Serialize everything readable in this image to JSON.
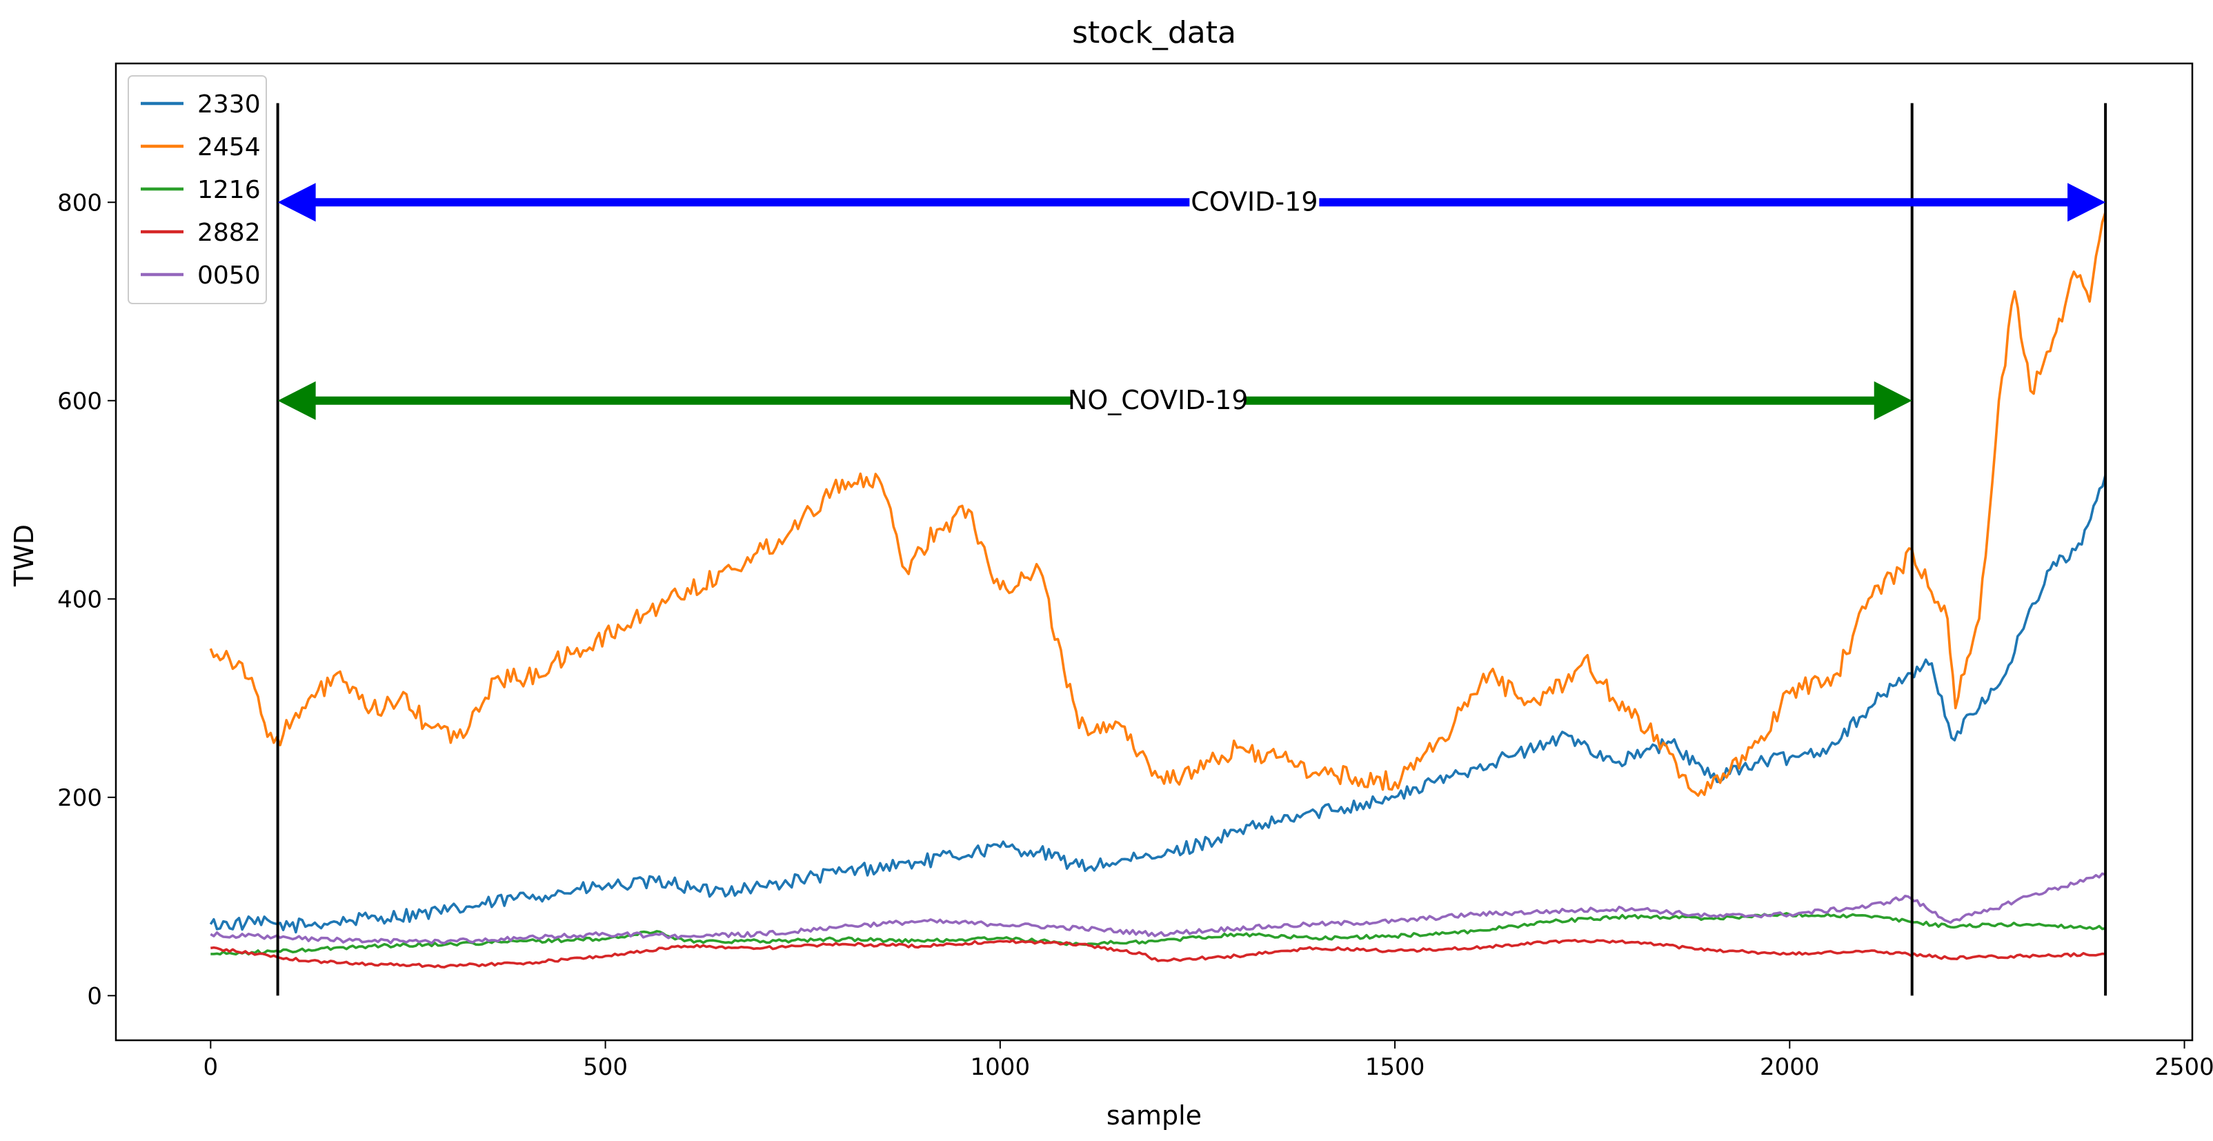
{
  "chart_data": {
    "type": "line",
    "title": "stock_data",
    "xlabel": "sample",
    "ylabel": "TWD",
    "xlim": [
      -120,
      2510
    ],
    "ylim": [
      -45,
      940
    ],
    "xticks": [
      0,
      500,
      1000,
      1500,
      2000,
      2500
    ],
    "yticks": [
      0,
      200,
      400,
      600,
      800
    ],
    "grid": false,
    "legend_position": "top-left",
    "series": [
      {
        "name": "2330",
        "color": "#1f77b4",
        "points": [
          [
            0,
            72
          ],
          [
            80,
            73
          ],
          [
            100,
            70
          ],
          [
            200,
            78
          ],
          [
            300,
            85
          ],
          [
            400,
            100
          ],
          [
            500,
            110
          ],
          [
            580,
            115
          ],
          [
            620,
            105
          ],
          [
            700,
            110
          ],
          [
            800,
            125
          ],
          [
            900,
            135
          ],
          [
            1000,
            150
          ],
          [
            1050,
            145
          ],
          [
            1100,
            130
          ],
          [
            1150,
            135
          ],
          [
            1200,
            140
          ],
          [
            1300,
            165
          ],
          [
            1400,
            185
          ],
          [
            1500,
            200
          ],
          [
            1550,
            215
          ],
          [
            1600,
            230
          ],
          [
            1680,
            250
          ],
          [
            1720,
            262
          ],
          [
            1780,
            235
          ],
          [
            1850,
            255
          ],
          [
            1900,
            220
          ],
          [
            1960,
            235
          ],
          [
            2000,
            240
          ],
          [
            2050,
            250
          ],
          [
            2100,
            290
          ],
          [
            2150,
            325
          ],
          [
            2180,
            335
          ],
          [
            2205,
            260
          ],
          [
            2240,
            290
          ],
          [
            2270,
            320
          ],
          [
            2300,
            380
          ],
          [
            2330,
            430
          ],
          [
            2370,
            455
          ],
          [
            2400,
            525
          ]
        ]
      },
      {
        "name": "2454",
        "color": "#ff7f0e",
        "points": [
          [
            0,
            350
          ],
          [
            40,
            335
          ],
          [
            80,
            255
          ],
          [
            120,
            290
          ],
          [
            160,
            325
          ],
          [
            200,
            285
          ],
          [
            240,
            300
          ],
          [
            280,
            270
          ],
          [
            320,
            260
          ],
          [
            360,
            320
          ],
          [
            400,
            320
          ],
          [
            460,
            345
          ],
          [
            520,
            370
          ],
          [
            580,
            400
          ],
          [
            660,
            430
          ],
          [
            720,
            460
          ],
          [
            760,
            490
          ],
          [
            800,
            520
          ],
          [
            850,
            515
          ],
          [
            880,
            430
          ],
          [
            920,
            470
          ],
          [
            960,
            490
          ],
          [
            1000,
            410
          ],
          [
            1050,
            430
          ],
          [
            1100,
            270
          ],
          [
            1150,
            275
          ],
          [
            1200,
            220
          ],
          [
            1250,
            225
          ],
          [
            1300,
            250
          ],
          [
            1350,
            240
          ],
          [
            1400,
            225
          ],
          [
            1450,
            220
          ],
          [
            1500,
            215
          ],
          [
            1560,
            260
          ],
          [
            1620,
            325
          ],
          [
            1660,
            300
          ],
          [
            1700,
            305
          ],
          [
            1740,
            340
          ],
          [
            1780,
            295
          ],
          [
            1840,
            255
          ],
          [
            1880,
            205
          ],
          [
            1920,
            220
          ],
          [
            1960,
            255
          ],
          [
            2000,
            305
          ],
          [
            2060,
            325
          ],
          [
            2100,
            400
          ],
          [
            2140,
            430
          ],
          [
            2155,
            450
          ],
          [
            2200,
            380
          ],
          [
            2210,
            290
          ],
          [
            2240,
            380
          ],
          [
            2265,
            600
          ],
          [
            2285,
            710
          ],
          [
            2305,
            610
          ],
          [
            2330,
            650
          ],
          [
            2360,
            730
          ],
          [
            2380,
            700
          ],
          [
            2400,
            790
          ]
        ]
      },
      {
        "name": "1216",
        "color": "#2ca02c",
        "points": [
          [
            0,
            42
          ],
          [
            100,
            45
          ],
          [
            200,
            50
          ],
          [
            300,
            52
          ],
          [
            400,
            55
          ],
          [
            500,
            57
          ],
          [
            565,
            65
          ],
          [
            600,
            55
          ],
          [
            700,
            55
          ],
          [
            800,
            57
          ],
          [
            900,
            55
          ],
          [
            1000,
            58
          ],
          [
            1100,
            52
          ],
          [
            1200,
            55
          ],
          [
            1300,
            62
          ],
          [
            1400,
            58
          ],
          [
            1500,
            60
          ],
          [
            1600,
            65
          ],
          [
            1700,
            75
          ],
          [
            1800,
            80
          ],
          [
            1900,
            78
          ],
          [
            2000,
            82
          ],
          [
            2100,
            80
          ],
          [
            2150,
            75
          ],
          [
            2200,
            70
          ],
          [
            2300,
            72
          ],
          [
            2400,
            68
          ]
        ]
      },
      {
        "name": "2882",
        "color": "#d62728",
        "points": [
          [
            0,
            48
          ],
          [
            60,
            42
          ],
          [
            120,
            35
          ],
          [
            200,
            32
          ],
          [
            300,
            30
          ],
          [
            400,
            33
          ],
          [
            500,
            40
          ],
          [
            600,
            50
          ],
          [
            700,
            48
          ],
          [
            800,
            52
          ],
          [
            900,
            50
          ],
          [
            1000,
            55
          ],
          [
            1100,
            52
          ],
          [
            1180,
            42
          ],
          [
            1200,
            35
          ],
          [
            1300,
            40
          ],
          [
            1400,
            48
          ],
          [
            1500,
            45
          ],
          [
            1600,
            48
          ],
          [
            1700,
            55
          ],
          [
            1800,
            54
          ],
          [
            1900,
            46
          ],
          [
            2000,
            42
          ],
          [
            2100,
            45
          ],
          [
            2150,
            42
          ],
          [
            2200,
            38
          ],
          [
            2300,
            40
          ],
          [
            2400,
            42
          ]
        ]
      },
      {
        "name": "0050",
        "color": "#9467bd",
        "points": [
          [
            0,
            62
          ],
          [
            100,
            58
          ],
          [
            200,
            55
          ],
          [
            300,
            55
          ],
          [
            400,
            58
          ],
          [
            500,
            62
          ],
          [
            600,
            60
          ],
          [
            700,
            62
          ],
          [
            800,
            70
          ],
          [
            900,
            75
          ],
          [
            1000,
            72
          ],
          [
            1100,
            68
          ],
          [
            1200,
            62
          ],
          [
            1300,
            68
          ],
          [
            1400,
            72
          ],
          [
            1500,
            75
          ],
          [
            1600,
            82
          ],
          [
            1700,
            85
          ],
          [
            1800,
            88
          ],
          [
            1900,
            80
          ],
          [
            2000,
            82
          ],
          [
            2100,
            90
          ],
          [
            2150,
            100
          ],
          [
            2200,
            75
          ],
          [
            2250,
            85
          ],
          [
            2300,
            100
          ],
          [
            2400,
            122
          ]
        ]
      }
    ],
    "vlines": [
      85,
      2155,
      2400
    ],
    "vline_ymax": 900,
    "annotations": [
      {
        "text": "COVID-19",
        "x_from": 85,
        "x_to": 2400,
        "y": 800,
        "label_x": 1322,
        "color": "#0000ff"
      },
      {
        "text": "NO_COVID-19",
        "x_from": 85,
        "x_to": 2155,
        "y": 600,
        "label_x": 1200,
        "color": "#008000"
      }
    ]
  }
}
